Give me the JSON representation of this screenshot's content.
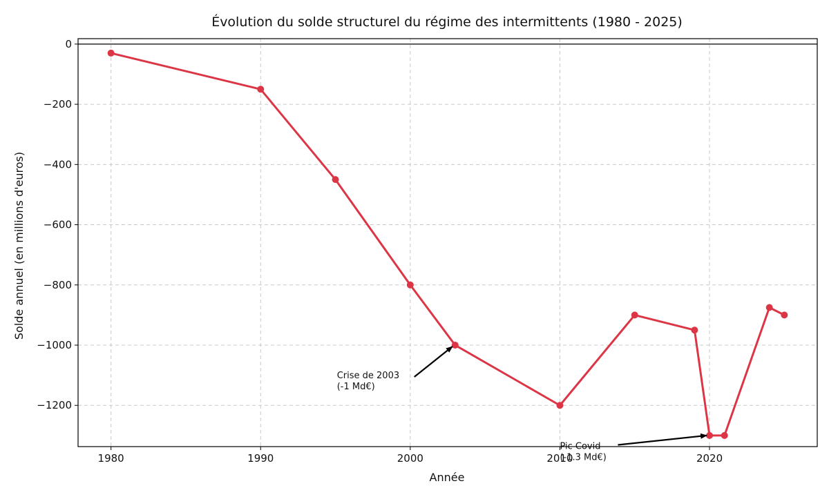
{
  "chart_data": {
    "type": "line",
    "title": "Évolution du solde structurel du régime des intermittents (1980 - 2025)",
    "xlabel": "Année",
    "ylabel": "Solde annuel (en millions d'euros)",
    "xlim": [
      1977.8,
      2027.2
    ],
    "ylim": [
      -1337,
      18
    ],
    "xticks": [
      1980,
      1990,
      2000,
      2010,
      2020
    ],
    "yticks": [
      0,
      -200,
      -400,
      -600,
      -800,
      -1000,
      -1200
    ],
    "xtick_labels": [
      "1980",
      "1990",
      "2000",
      "2010",
      "2020"
    ],
    "ytick_labels": [
      "0",
      "−200",
      "−400",
      "−600",
      "−800",
      "−1000",
      "−1200"
    ],
    "grid": true,
    "reference_line_y": 0,
    "series": [
      {
        "color": "#dc3545",
        "x": [
          1980,
          1990,
          1995,
          2000,
          2003,
          2010,
          2015,
          2019,
          2020,
          2021,
          2024,
          2025
        ],
        "y": [
          -30,
          -150,
          -450,
          -800,
          -1000,
          -1200,
          -900,
          -950,
          -1300,
          -1300,
          -875,
          -900
        ]
      }
    ],
    "annotations": [
      {
        "lines": [
          "Crise de 2003",
          "(-1 Md€)"
        ],
        "point": [
          2003,
          -1000
        ],
        "text_at": [
          1995.1,
          -1110
        ]
      },
      {
        "lines": [
          "Pic Covid",
          "(-1.3 Md€)"
        ],
        "point": [
          2020,
          -1300
        ],
        "text_at": [
          2010,
          -1345
        ]
      }
    ]
  }
}
